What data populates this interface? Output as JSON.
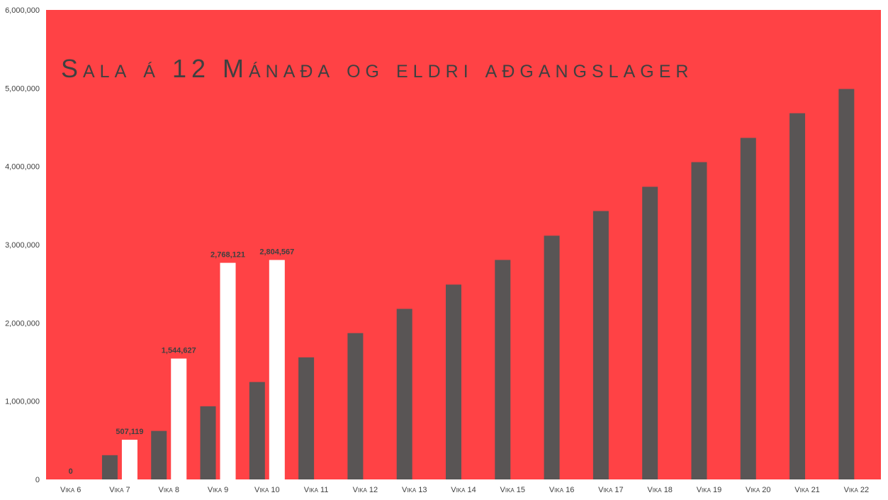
{
  "chart_data": {
    "type": "bar",
    "title": "Sala á 12 Mánaða og eldri aðgangslager",
    "xlabel": "",
    "ylabel": "",
    "ylim": [
      0,
      6000000
    ],
    "yticks": [
      "0",
      "1,000,000",
      "2,000,000",
      "3,000,000",
      "4,000,000",
      "5,000,000",
      "6,000,000"
    ],
    "grid": false,
    "legend": "none",
    "categories": [
      "Vika 6",
      "Vika 7",
      "Vika 8",
      "Vika 9",
      "Vika 10",
      "Vika 11",
      "Vika 12",
      "Vika 13",
      "Vika 14",
      "Vika 15",
      "Vika 16",
      "Vika 17",
      "Vika 18",
      "Vika 19",
      "Vika 20",
      "Vika 21",
      "Vika 22"
    ],
    "series": [
      {
        "color": "#595555",
        "values": [
          0,
          310000,
          620000,
          935000,
          1245000,
          1560000,
          1870000,
          2180000,
          2490000,
          2805000,
          3115000,
          3430000,
          3740000,
          4055000,
          4365000,
          4680000,
          4990000
        ]
      },
      {
        "color": "#ffffff",
        "values": [
          0,
          507119,
          1544627,
          2768121,
          2804567,
          null,
          null,
          null,
          null,
          null,
          null,
          null,
          null,
          null,
          null,
          null,
          null
        ],
        "labels": [
          "0",
          "507,119",
          "1,544,627",
          "2,768,121",
          "2,804,567",
          null,
          null,
          null,
          null,
          null,
          null,
          null,
          null,
          null,
          null,
          null,
          null
        ]
      }
    ],
    "colors": {
      "plot_background": "#ff4245",
      "axis_text": "#404040",
      "label_text": "#404040"
    }
  }
}
